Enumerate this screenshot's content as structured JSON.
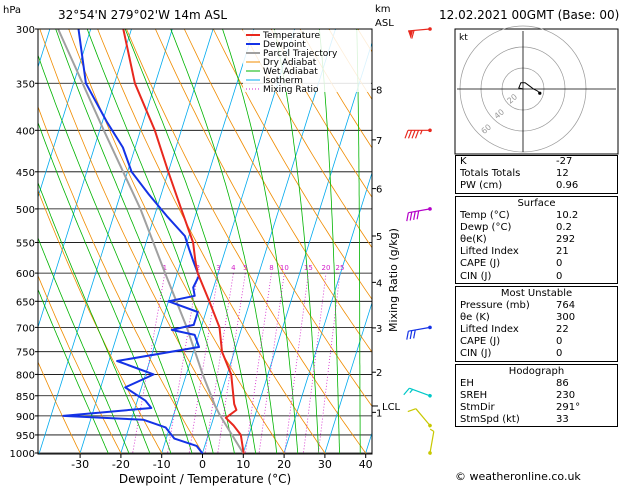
{
  "header": {
    "hpa_label": "hPa",
    "location": "32°54'N 279°02'W 14m ASL",
    "km_label": "km",
    "asl_label": "ASL",
    "datetime": "12.02.2021 00GMT (Base: 00)"
  },
  "footer": "© weatheronline.co.uk",
  "colors": {
    "temperature": "#e8281e",
    "dewpoint": "#1432e6",
    "parcel": "#a0a0a0",
    "dry_adiabat": "#f08c00",
    "wet_adiabat": "#00b400",
    "isotherm": "#00aaee",
    "mixing_ratio": "#d21ec8"
  },
  "chart_data": [
    {
      "type": "line",
      "chart": "skew-t log-p",
      "xlabel": "Dewpoint / Temperature (°C)",
      "ylabel_right": "Mixing Ratio (g/kg)",
      "x_ticks": [
        -30,
        -20,
        -10,
        0,
        10,
        20,
        30,
        40
      ],
      "pressure_ticks": [
        300,
        350,
        400,
        450,
        500,
        550,
        600,
        650,
        700,
        750,
        800,
        850,
        900,
        950,
        1000
      ],
      "height_km_ticks": [
        {
          "km": "1",
          "p": 891
        },
        {
          "km": "2",
          "p": 795
        },
        {
          "km": "3",
          "p": 701
        },
        {
          "km": "4",
          "p": 616
        },
        {
          "km": "5",
          "p": 540
        },
        {
          "km": "6",
          "p": 472
        },
        {
          "km": "7",
          "p": 411
        },
        {
          "km": "8",
          "p": 356
        }
      ],
      "lcl": {
        "label": "LCL",
        "p": 875
      },
      "mixing_ratio_labels": [
        "1",
        "2",
        "3",
        "4",
        "5",
        "8",
        "10",
        "15",
        "20",
        "25"
      ],
      "legend": [
        "Temperature",
        "Dewpoint",
        "Parcel Trajectory",
        "Dry Adiabat",
        "Wet Adiabat",
        "Isotherm",
        "Mixing Ratio"
      ],
      "legend_position": "top-right",
      "series": [
        {
          "name": "Temperature",
          "points": [
            [
              1003,
              10.2
            ],
            [
              950,
              8.0
            ],
            [
              925,
              5.5
            ],
            [
              905,
              3.0
            ],
            [
              885,
              5.0
            ],
            [
              870,
              4.0
            ],
            [
              800,
              1.0
            ],
            [
              750,
              -3.0
            ],
            [
              700,
              -5.5
            ],
            [
              650,
              -10.0
            ],
            [
              600,
              -15.0
            ],
            [
              580,
              -16.5
            ],
            [
              550,
              -18.5
            ],
            [
              500,
              -24.0
            ],
            [
              450,
              -30.0
            ],
            [
              400,
              -36.5
            ],
            [
              350,
              -45.0
            ],
            [
              300,
              -52.0
            ]
          ]
        },
        {
          "name": "Dewpoint",
          "points": [
            [
              1003,
              0.2
            ],
            [
              980,
              -2.0
            ],
            [
              960,
              -8.0
            ],
            [
              930,
              -11.0
            ],
            [
              910,
              -17.0
            ],
            [
              900,
              -37.0
            ],
            [
              880,
              -16.0
            ],
            [
              862,
              -18.0
            ],
            [
              830,
              -24.0
            ],
            [
              800,
              -18.0
            ],
            [
              770,
              -28.0
            ],
            [
              740,
              -9.0
            ],
            [
              715,
              -11.0
            ],
            [
              705,
              -17.0
            ],
            [
              695,
              -12.0
            ],
            [
              670,
              -12.0
            ],
            [
              650,
              -20.0
            ],
            [
              640,
              -14.0
            ],
            [
              625,
              -15.0
            ],
            [
              605,
              -14.5
            ],
            [
              580,
              -17.0
            ],
            [
              560,
              -19.0
            ],
            [
              540,
              -21.0
            ],
            [
              510,
              -27.0
            ],
            [
              480,
              -33.0
            ],
            [
              450,
              -39.0
            ],
            [
              420,
              -43.0
            ],
            [
              390,
              -49.0
            ],
            [
              350,
              -57.0
            ],
            [
              300,
              -63.0
            ]
          ]
        },
        {
          "name": "Parcel Trajectory",
          "points": [
            [
              1003,
              10.2
            ],
            [
              900,
              1.5
            ],
            [
              875,
              -0.5
            ],
            [
              800,
              -6.0
            ],
            [
              700,
              -13.5
            ],
            [
              600,
              -23.0
            ],
            [
              500,
              -34.0
            ],
            [
              400,
              -49.0
            ],
            [
              300,
              -68.0
            ]
          ]
        }
      ],
      "wind_barbs": [
        {
          "p": 1000,
          "dir_deg": 10,
          "speed_kt": 5
        },
        {
          "p": 925,
          "dir_deg": 320,
          "speed_kt": 10
        },
        {
          "p": 850,
          "dir_deg": 290,
          "speed_kt": 15
        },
        {
          "p": 700,
          "dir_deg": 260,
          "speed_kt": 30
        },
        {
          "p": 500,
          "dir_deg": 260,
          "speed_kt": 40
        },
        {
          "p": 400,
          "dir_deg": 270,
          "speed_kt": 45
        },
        {
          "p": 300,
          "dir_deg": 265,
          "speed_kt": 60
        }
      ]
    },
    {
      "type": "line",
      "chart": "hodograph",
      "unit_label": "kt",
      "ring_labels": [
        "20",
        "40",
        "60"
      ],
      "points": [
        [
          0,
          0
        ],
        [
          -4,
          1
        ],
        [
          -2,
          6
        ],
        [
          2,
          6
        ],
        [
          6,
          3
        ],
        [
          10,
          0
        ],
        [
          14,
          -2
        ],
        [
          16,
          -4
        ]
      ]
    }
  ],
  "indices": {
    "basic": [
      {
        "label": "K",
        "value": "-27"
      },
      {
        "label": "Totals Totals",
        "value": "12"
      },
      {
        "label": "PW (cm)",
        "value": "0.96"
      }
    ],
    "surface_title": "Surface",
    "surface": [
      {
        "label": "Temp (°C)",
        "value": "10.2"
      },
      {
        "label": "Dewp (°C)",
        "value": "0.2"
      },
      {
        "label": "θe(K)",
        "value": "292"
      },
      {
        "label": "Lifted Index",
        "value": "21"
      },
      {
        "label": "CAPE (J)",
        "value": "0"
      },
      {
        "label": "CIN (J)",
        "value": "0"
      }
    ],
    "unstable_title": "Most Unstable",
    "unstable": [
      {
        "label": "Pressure (mb)",
        "value": "764"
      },
      {
        "label": "θe (K)",
        "value": "300"
      },
      {
        "label": "Lifted Index",
        "value": "22"
      },
      {
        "label": "CAPE (J)",
        "value": "0"
      },
      {
        "label": "CIN (J)",
        "value": "0"
      }
    ],
    "hodo_title": "Hodograph",
    "hodograph": [
      {
        "label": "EH",
        "value": "86"
      },
      {
        "label": "SREH",
        "value": "230"
      },
      {
        "label": "StmDir",
        "value": "291°"
      },
      {
        "label": "StmSpd (kt)",
        "value": "33"
      }
    ]
  }
}
